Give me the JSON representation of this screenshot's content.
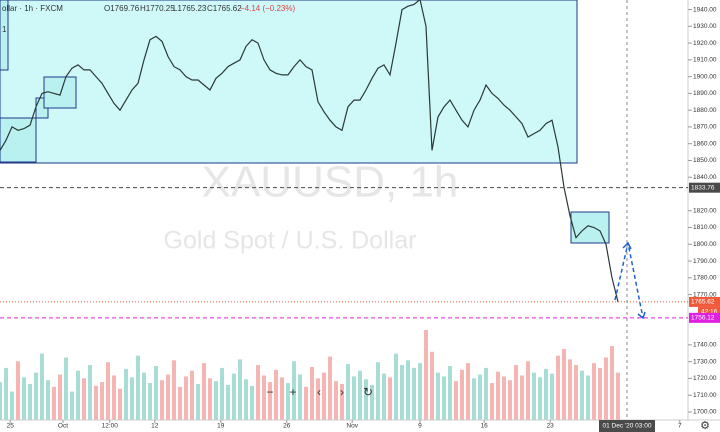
{
  "header": {
    "symbol": "ollar · 1h · FXCM",
    "o": "O1769.76",
    "h": "H1770.25",
    "l": "L1765.23",
    "c": "C1765.62",
    "change": "−4.14 (−0.23%)"
  },
  "watermark": {
    "ticker": "XAUUSD, 1h",
    "name": "Gold Spot / U.S. Dollar"
  },
  "left_marker": "1",
  "chart_data": {
    "type": "line",
    "color": "#2b3a36",
    "values": [
      1856,
      1862,
      1870,
      1868,
      1869,
      1871,
      1882,
      1890,
      1891,
      1890,
      1889,
      1900,
      1905,
      1907,
      1904,
      1904,
      1900,
      1896,
      1890,
      1884,
      1880,
      1886,
      1892,
      1896,
      1910,
      1922,
      1924,
      1921,
      1912,
      1906,
      1904,
      1900,
      1898,
      1898,
      1895,
      1892,
      1899,
      1902,
      1906,
      1908,
      1910,
      1918,
      1922,
      1920,
      1910,
      1904,
      1902,
      1901,
      1901,
      1906,
      1910,
      1906,
      1904,
      1885,
      1879,
      1874,
      1870,
      1868,
      1882,
      1886,
      1886,
      1892,
      1899,
      1905,
      1907,
      1901,
      1920,
      1940,
      1942,
      1943,
      1946,
      1930,
      1856,
      1876,
      1882,
      1886,
      1880,
      1874,
      1870,
      1880,
      1886,
      1895,
      1890,
      1887,
      1883,
      1880,
      1876,
      1872,
      1864,
      1866,
      1868,
      1872,
      1874,
      1858,
      1834,
      1817,
      1804,
      1808,
      1811,
      1810,
      1808,
      1800,
      1780,
      1765.62
    ],
    "volume": [
      40,
      55,
      30,
      62,
      45,
      38,
      50,
      70,
      42,
      35,
      48,
      66,
      30,
      52,
      44,
      58,
      36,
      40,
      61,
      47,
      33,
      54,
      45,
      68,
      50,
      39,
      57,
      42,
      48,
      63,
      35,
      46,
      52,
      38,
      60,
      44,
      41,
      55,
      37,
      49,
      64,
      43,
      36,
      58,
      47,
      40,
      53,
      45,
      39,
      62,
      48,
      35,
      56,
      44,
      50,
      67,
      41,
      38,
      59,
      46,
      52,
      43,
      37,
      61,
      49,
      45,
      70,
      58,
      63,
      55,
      60,
      95,
      72,
      50,
      46,
      57,
      41,
      53,
      60,
      44,
      48,
      55,
      39,
      51,
      46,
      42,
      58,
      47,
      62,
      50,
      45,
      54,
      49,
      68,
      75,
      64,
      58,
      52,
      47,
      60,
      55,
      66,
      78,
      50
    ],
    "xlim": [
      0,
      114.67
    ],
    "xticks": [
      {
        "value": 1.7,
        "label": "25"
      },
      {
        "value": 10.5,
        "label": "Oct"
      },
      {
        "value": 18.3,
        "label": "12:00"
      },
      {
        "value": 25.8,
        "label": "12"
      },
      {
        "value": 36.8,
        "label": "19"
      },
      {
        "value": 47.8,
        "label": "26"
      },
      {
        "value": 58.7,
        "label": "Nov"
      },
      {
        "value": 70,
        "label": "9"
      },
      {
        "value": 80.7,
        "label": "16"
      },
      {
        "value": 91.7,
        "label": "23"
      },
      {
        "value": 113.3,
        "label": "7"
      }
    ],
    "crosshair": {
      "value": 104.5,
      "label": "01 Dec '20  03:00"
    },
    "ylim": [
      1695.2,
      1945.7
    ],
    "yticks": [
      {
        "value": 1940,
        "label": "1940.00"
      },
      {
        "value": 1930,
        "label": "1930.00"
      },
      {
        "value": 1920,
        "label": "1920.00"
      },
      {
        "value": 1910,
        "label": "1910.00"
      },
      {
        "value": 1900,
        "label": "1900.00"
      },
      {
        "value": 1890,
        "label": "1890.00"
      },
      {
        "value": 1880,
        "label": "1880.00"
      },
      {
        "value": 1870,
        "label": "1870.00"
      },
      {
        "value": 1860,
        "label": "1860.00"
      },
      {
        "value": 1850,
        "label": "1850.00"
      },
      {
        "value": 1840,
        "label": "1840.00"
      },
      {
        "value": 1820,
        "label": "1820.00"
      },
      {
        "value": 1810,
        "label": "1810.00"
      },
      {
        "value": 1800,
        "label": "1800.00"
      },
      {
        "value": 1790,
        "label": "1790.00"
      },
      {
        "value": 1780,
        "label": "1780.00"
      },
      {
        "value": 1770,
        "label": "1770.00"
      },
      {
        "value": 1740,
        "label": "1740.00"
      },
      {
        "value": 1730,
        "label": "1730.00"
      },
      {
        "value": 1720,
        "label": "1720.00"
      },
      {
        "value": 1710,
        "label": "1710.00"
      },
      {
        "value": 1700,
        "label": "1700.00"
      }
    ],
    "price_lines": [
      {
        "value": 1833.76,
        "label": "1833.76",
        "color": "#4a4a4a"
      },
      {
        "value": 1765.62,
        "label": "1765.62",
        "color": "#f05a3a",
        "extra": "42:16"
      },
      {
        "value": 1756.12,
        "label": "1756.12",
        "color": "#e020e0"
      }
    ]
  }
}
